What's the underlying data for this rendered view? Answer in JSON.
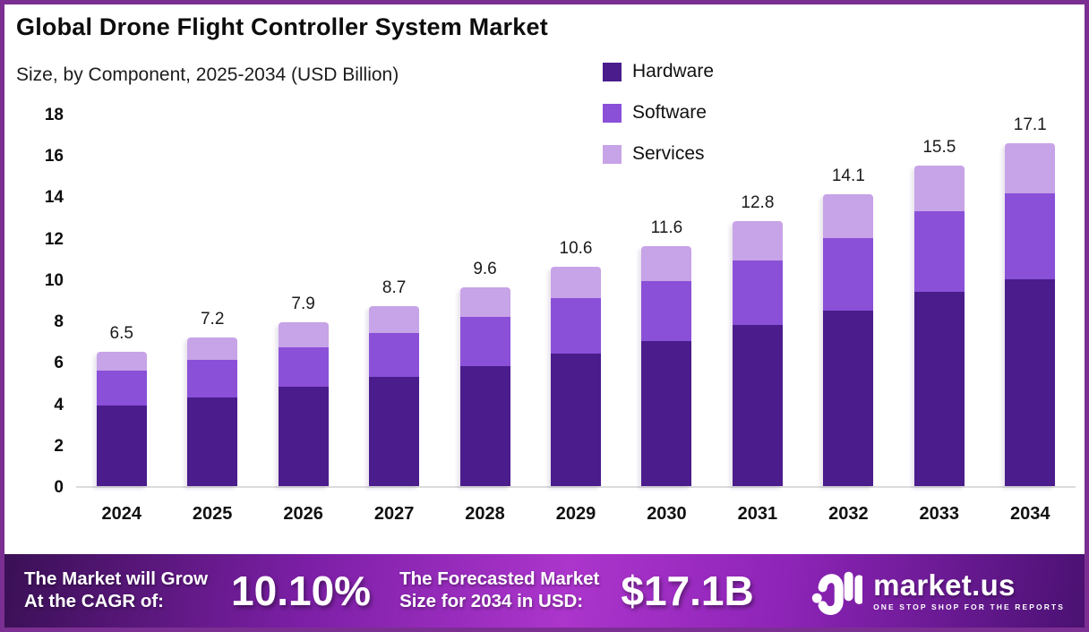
{
  "header": {
    "title": "Global Drone Flight Controller System Market",
    "subtitle": "Size, by Component, 2025-2034 (USD Billion)"
  },
  "legend": [
    {
      "label": "Hardware",
      "color": "#4A1C8C"
    },
    {
      "label": "Software",
      "color": "#8A50D8"
    },
    {
      "label": "Services",
      "color": "#C7A3E7"
    }
  ],
  "chart_data": {
    "type": "bar",
    "stacked": true,
    "grid": false,
    "legend_position": "top-right",
    "title": "Global Drone Flight Controller System Market",
    "subtitle": "Size, by Component, 2025-2034 (USD Billion)",
    "xlabel": "",
    "ylabel": "USD Billion",
    "ylim": [
      0,
      18
    ],
    "yticks": [
      0,
      2,
      4,
      6,
      8,
      10,
      12,
      14,
      16,
      18
    ],
    "categories": [
      "2024",
      "2025",
      "2026",
      "2027",
      "2028",
      "2029",
      "2030",
      "2031",
      "2032",
      "2033",
      "2034"
    ],
    "series": [
      {
        "name": "Hardware",
        "color": "#4A1C8C",
        "values": [
          3.9,
          4.3,
          4.8,
          5.3,
          5.8,
          6.4,
          7.0,
          7.8,
          8.5,
          9.4,
          10.3
        ]
      },
      {
        "name": "Software",
        "color": "#8A50D8",
        "values": [
          1.7,
          1.8,
          1.9,
          2.1,
          2.4,
          2.7,
          2.9,
          3.1,
          3.5,
          3.9,
          4.3
        ]
      },
      {
        "name": "Services",
        "color": "#C7A3E7",
        "values": [
          0.9,
          1.1,
          1.2,
          1.3,
          1.4,
          1.5,
          1.7,
          1.9,
          2.1,
          2.2,
          2.5
        ]
      }
    ],
    "totals": [
      "6.5",
      "7.2",
      "7.9",
      "8.7",
      "9.6",
      "10.6",
      "11.6",
      "12.8",
      "14.1",
      "15.5",
      "17.1"
    ]
  },
  "footer": {
    "cagr_label_line1": "The Market will Grow",
    "cagr_label_line2": "At the CAGR of:",
    "cagr_value": "10.10%",
    "forecast_label_line1": "The Forecasted Market",
    "forecast_label_line2": "Size for 2034 in USD:",
    "forecast_value": "$17.1B",
    "brand": {
      "name": "market.us",
      "tagline": "ONE STOP SHOP FOR THE REPORTS"
    }
  },
  "colors": {
    "frame_border": "#7C2F92",
    "hardware": "#4A1C8C",
    "software": "#8A50D8",
    "services": "#C7A3E7",
    "footer_gradient_left": "#3A1055",
    "footer_gradient_mid": "#AC35CC",
    "footer_gradient_right": "#4A1172"
  }
}
